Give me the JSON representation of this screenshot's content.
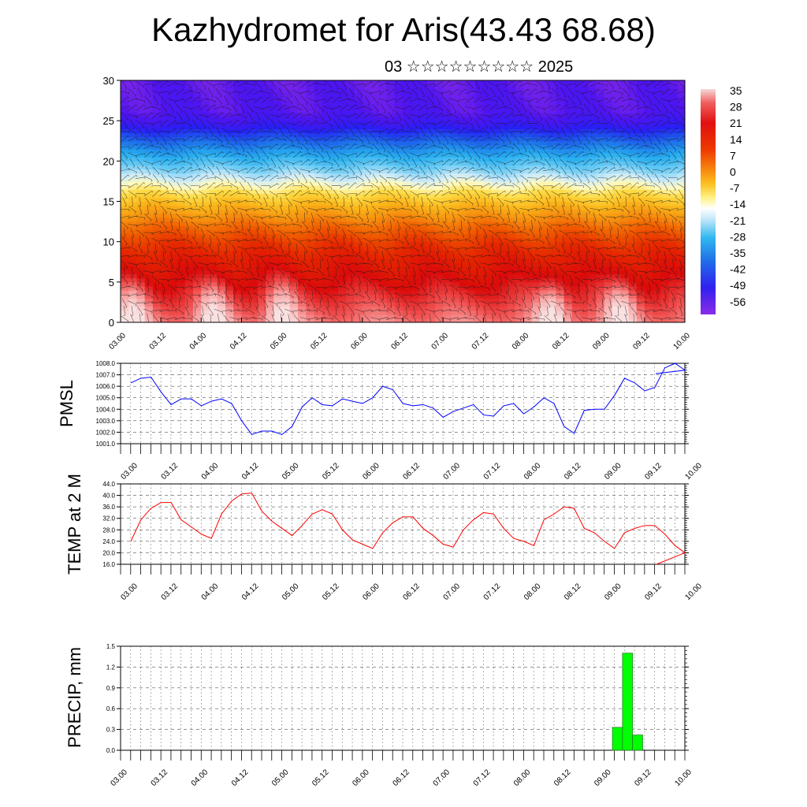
{
  "title": "Kazhydromet for Aris(43.43 68.68)",
  "subtitle": "03 ☆☆☆☆☆☆☆☆☆ 2025",
  "time_ticks": [
    "03.00",
    "03.12",
    "04.00",
    "04.12",
    "05.00",
    "05.12",
    "06.00",
    "06.12",
    "07.00",
    "07.12",
    "08.00",
    "08.12",
    "09.00",
    "09.12",
    "10.00"
  ],
  "chart_data": [
    {
      "type": "heatmap",
      "name": "cross-section",
      "x_ticks": [
        "03.00",
        "03.12",
        "04.00",
        "04.12",
        "05.00",
        "05.12",
        "06.00",
        "06.12",
        "07.00",
        "07.12",
        "08.00",
        "08.12",
        "09.00",
        "09.12",
        "10.00"
      ],
      "y_ticks": [
        "0",
        "5",
        "10",
        "15",
        "20",
        "25",
        "30"
      ],
      "ylim": [
        0,
        30
      ],
      "colorbar_labels": [
        "35",
        "28",
        "21",
        "14",
        "7",
        "0",
        "-7",
        "-14",
        "-21",
        "-28",
        "-35",
        "-42",
        "-49",
        "-56"
      ],
      "colorbar_range": [
        -60,
        40
      ],
      "vertical_profile": [
        {
          "y": 0,
          "v": 30
        },
        {
          "y": 5,
          "v": 22
        },
        {
          "y": 8,
          "v": 18
        },
        {
          "y": 10,
          "v": 14
        },
        {
          "y": 12,
          "v": 8
        },
        {
          "y": 14,
          "v": 0
        },
        {
          "y": 16,
          "v": -8
        },
        {
          "y": 17.5,
          "v": -14
        },
        {
          "y": 19,
          "v": -20
        },
        {
          "y": 21,
          "v": -30
        },
        {
          "y": 23,
          "v": -42
        },
        {
          "y": 24.5,
          "v": -52
        },
        {
          "y": 26,
          "v": -56
        },
        {
          "y": 30,
          "v": -57
        }
      ],
      "hot_spots_days": [
        0.15,
        1.15,
        2.0,
        5.35,
        6.2
      ]
    },
    {
      "type": "line",
      "ylabel": "PMSL",
      "color": "#0000ff",
      "ylim": [
        1001.0,
        1008.0
      ],
      "y_ticks": [
        "1001.0",
        "1002.0",
        "1003.0",
        "1004.0",
        "1005.0",
        "1006.0",
        "1007.0",
        "1008.0"
      ],
      "x_days": [
        0,
        0.125,
        0.25,
        0.375,
        0.5,
        0.625,
        0.75,
        0.875,
        1.0,
        1.125,
        1.25,
        1.375,
        1.5,
        1.625,
        1.75,
        1.875,
        2.0,
        2.125,
        2.25,
        2.375,
        2.5,
        2.625,
        2.75,
        2.875,
        3.0,
        3.125,
        3.25,
        3.375,
        3.5,
        3.625,
        3.75,
        3.875,
        4.0,
        4.125,
        4.25,
        4.375,
        4.5,
        4.625,
        4.75,
        4.875,
        5.0,
        5.125,
        5.25,
        5.375,
        5.5,
        5.625,
        5.75,
        5.875,
        6.0,
        6.125,
        6.25,
        6.375,
        6.5,
        6.625,
        6.75,
        6.875
      ],
      "values": [
        1006.3,
        1006.7,
        1006.8,
        1005.5,
        1004.4,
        1004.9,
        1004.9,
        1004.3,
        1004.7,
        1004.9,
        1004.5,
        1003.0,
        1001.8,
        1002.1,
        1002.1,
        1001.8,
        1002.5,
        1004.2,
        1005.0,
        1004.4,
        1004.3,
        1004.9,
        1004.7,
        1004.5,
        1005.0,
        1006.0,
        1005.7,
        1004.5,
        1004.3,
        1004.4,
        1004.1,
        1003.3,
        1003.8,
        1004.1,
        1004.4,
        1003.5,
        1003.4,
        1004.3,
        1004.5,
        1003.6,
        1004.2,
        1005.0,
        1004.5,
        1002.5,
        1001.9,
        1003.9,
        1004.0,
        1004.0,
        1005.2,
        1006.7,
        1006.3,
        1005.6,
        1005.9,
        1007.6,
        1008.0,
        1007.4
      ],
      "x_end_value": 1007.1
    },
    {
      "type": "line",
      "ylabel": "TEMP at 2 M",
      "color": "#ff0000",
      "ylim": [
        16.0,
        44.0
      ],
      "y_ticks": [
        "16.0",
        "20.0",
        "24.0",
        "28.0",
        "32.0",
        "36.0",
        "40.0",
        "44.0"
      ],
      "x_days": [
        0,
        0.125,
        0.25,
        0.375,
        0.5,
        0.625,
        0.75,
        0.875,
        1.0,
        1.125,
        1.25,
        1.375,
        1.5,
        1.625,
        1.75,
        1.875,
        2.0,
        2.125,
        2.25,
        2.375,
        2.5,
        2.625,
        2.75,
        2.875,
        3.0,
        3.125,
        3.25,
        3.375,
        3.5,
        3.625,
        3.75,
        3.875,
        4.0,
        4.125,
        4.25,
        4.375,
        4.5,
        4.625,
        4.75,
        4.875,
        5.0,
        5.125,
        5.25,
        5.375,
        5.5,
        5.625,
        5.75,
        5.875,
        6.0,
        6.125,
        6.25,
        6.375,
        6.5,
        6.625,
        6.75,
        6.875
      ],
      "values": [
        24.0,
        31.5,
        35.5,
        37.5,
        37.5,
        31.5,
        29.0,
        26.5,
        25.0,
        33.5,
        38.0,
        40.5,
        40.8,
        34.5,
        31.0,
        28.5,
        26.0,
        29.5,
        33.5,
        35.0,
        33.5,
        28.0,
        24.5,
        23.0,
        21.5,
        27.0,
        30.5,
        32.5,
        32.5,
        28.5,
        26.0,
        23.0,
        22.0,
        28.0,
        31.5,
        34.0,
        33.5,
        28.5,
        25.0,
        24.0,
        22.5,
        31.5,
        33.5,
        36.0,
        35.5,
        28.5,
        27.0,
        24.0,
        21.5,
        27.0,
        28.5,
        29.5,
        29.5,
        26.5,
        22.5,
        20.0
      ],
      "x_end_value": 16.0
    },
    {
      "type": "bar",
      "ylabel": "PRECIP, mm",
      "color": "#00ff00",
      "ylim": [
        0.0,
        1.5
      ],
      "y_ticks": [
        "0.0",
        "0.3",
        "0.6",
        "0.9",
        "1.2",
        "1.5"
      ],
      "bars": [
        {
          "x_day": 6.125,
          "value": 0.33
        },
        {
          "x_day": 6.25,
          "value": 1.4
        },
        {
          "x_day": 6.375,
          "value": 0.22
        }
      ]
    }
  ]
}
